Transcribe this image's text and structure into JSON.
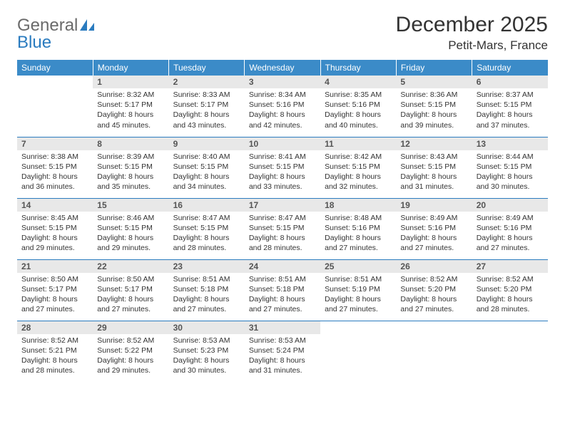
{
  "brand": {
    "part1": "General",
    "part2": "Blue"
  },
  "title": "December 2025",
  "location": "Petit-Mars, France",
  "colors": {
    "header_bg": "#3b8bc8",
    "header_text": "#ffffff",
    "rule": "#2a7bbf",
    "daynum_bg": "#e8e8e8",
    "text": "#333333",
    "logo_gray": "#6a6a6a",
    "logo_blue": "#2a7bbf",
    "background": "#ffffff"
  },
  "weekdays": [
    "Sunday",
    "Monday",
    "Tuesday",
    "Wednesday",
    "Thursday",
    "Friday",
    "Saturday"
  ],
  "first_weekday_index": 1,
  "days": [
    {
      "n": 1,
      "sunrise": "8:32 AM",
      "sunset": "5:17 PM",
      "daylight": "8 hours and 45 minutes."
    },
    {
      "n": 2,
      "sunrise": "8:33 AM",
      "sunset": "5:17 PM",
      "daylight": "8 hours and 43 minutes."
    },
    {
      "n": 3,
      "sunrise": "8:34 AM",
      "sunset": "5:16 PM",
      "daylight": "8 hours and 42 minutes."
    },
    {
      "n": 4,
      "sunrise": "8:35 AM",
      "sunset": "5:16 PM",
      "daylight": "8 hours and 40 minutes."
    },
    {
      "n": 5,
      "sunrise": "8:36 AM",
      "sunset": "5:15 PM",
      "daylight": "8 hours and 39 minutes."
    },
    {
      "n": 6,
      "sunrise": "8:37 AM",
      "sunset": "5:15 PM",
      "daylight": "8 hours and 37 minutes."
    },
    {
      "n": 7,
      "sunrise": "8:38 AM",
      "sunset": "5:15 PM",
      "daylight": "8 hours and 36 minutes."
    },
    {
      "n": 8,
      "sunrise": "8:39 AM",
      "sunset": "5:15 PM",
      "daylight": "8 hours and 35 minutes."
    },
    {
      "n": 9,
      "sunrise": "8:40 AM",
      "sunset": "5:15 PM",
      "daylight": "8 hours and 34 minutes."
    },
    {
      "n": 10,
      "sunrise": "8:41 AM",
      "sunset": "5:15 PM",
      "daylight": "8 hours and 33 minutes."
    },
    {
      "n": 11,
      "sunrise": "8:42 AM",
      "sunset": "5:15 PM",
      "daylight": "8 hours and 32 minutes."
    },
    {
      "n": 12,
      "sunrise": "8:43 AM",
      "sunset": "5:15 PM",
      "daylight": "8 hours and 31 minutes."
    },
    {
      "n": 13,
      "sunrise": "8:44 AM",
      "sunset": "5:15 PM",
      "daylight": "8 hours and 30 minutes."
    },
    {
      "n": 14,
      "sunrise": "8:45 AM",
      "sunset": "5:15 PM",
      "daylight": "8 hours and 29 minutes."
    },
    {
      "n": 15,
      "sunrise": "8:46 AM",
      "sunset": "5:15 PM",
      "daylight": "8 hours and 29 minutes."
    },
    {
      "n": 16,
      "sunrise": "8:47 AM",
      "sunset": "5:15 PM",
      "daylight": "8 hours and 28 minutes."
    },
    {
      "n": 17,
      "sunrise": "8:47 AM",
      "sunset": "5:15 PM",
      "daylight": "8 hours and 28 minutes."
    },
    {
      "n": 18,
      "sunrise": "8:48 AM",
      "sunset": "5:16 PM",
      "daylight": "8 hours and 27 minutes."
    },
    {
      "n": 19,
      "sunrise": "8:49 AM",
      "sunset": "5:16 PM",
      "daylight": "8 hours and 27 minutes."
    },
    {
      "n": 20,
      "sunrise": "8:49 AM",
      "sunset": "5:16 PM",
      "daylight": "8 hours and 27 minutes."
    },
    {
      "n": 21,
      "sunrise": "8:50 AM",
      "sunset": "5:17 PM",
      "daylight": "8 hours and 27 minutes."
    },
    {
      "n": 22,
      "sunrise": "8:50 AM",
      "sunset": "5:17 PM",
      "daylight": "8 hours and 27 minutes."
    },
    {
      "n": 23,
      "sunrise": "8:51 AM",
      "sunset": "5:18 PM",
      "daylight": "8 hours and 27 minutes."
    },
    {
      "n": 24,
      "sunrise": "8:51 AM",
      "sunset": "5:18 PM",
      "daylight": "8 hours and 27 minutes."
    },
    {
      "n": 25,
      "sunrise": "8:51 AM",
      "sunset": "5:19 PM",
      "daylight": "8 hours and 27 minutes."
    },
    {
      "n": 26,
      "sunrise": "8:52 AM",
      "sunset": "5:20 PM",
      "daylight": "8 hours and 27 minutes."
    },
    {
      "n": 27,
      "sunrise": "8:52 AM",
      "sunset": "5:20 PM",
      "daylight": "8 hours and 28 minutes."
    },
    {
      "n": 28,
      "sunrise": "8:52 AM",
      "sunset": "5:21 PM",
      "daylight": "8 hours and 28 minutes."
    },
    {
      "n": 29,
      "sunrise": "8:52 AM",
      "sunset": "5:22 PM",
      "daylight": "8 hours and 29 minutes."
    },
    {
      "n": 30,
      "sunrise": "8:53 AM",
      "sunset": "5:23 PM",
      "daylight": "8 hours and 30 minutes."
    },
    {
      "n": 31,
      "sunrise": "8:53 AM",
      "sunset": "5:24 PM",
      "daylight": "8 hours and 31 minutes."
    }
  ],
  "labels": {
    "sunrise": "Sunrise:",
    "sunset": "Sunset:",
    "daylight": "Daylight:"
  }
}
